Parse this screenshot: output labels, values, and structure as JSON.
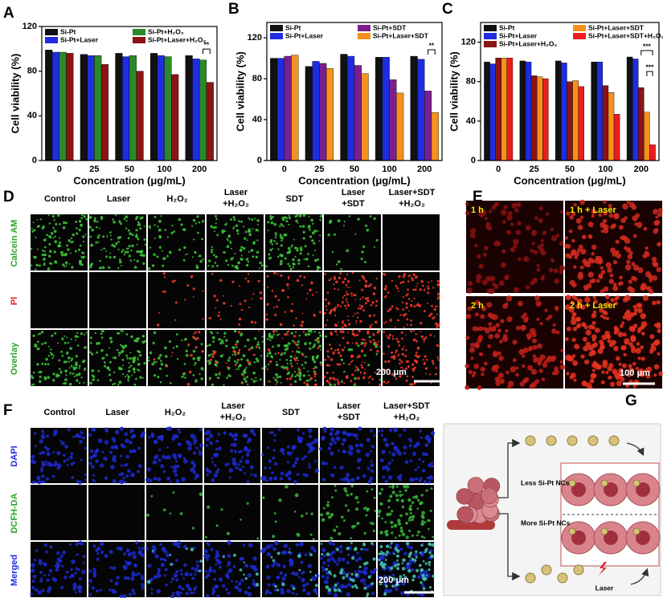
{
  "chart_data": [
    {
      "type": "bar",
      "panel": "A",
      "ylabel": "Cell viability (%)",
      "xlabel": "Concentration (μg/mL)",
      "categories": [
        "0",
        "25",
        "50",
        "100",
        "200"
      ],
      "series": [
        {
          "name": "Si-Pt",
          "color": "#111111",
          "values": [
            99,
            95,
            96,
            96,
            94
          ]
        },
        {
          "name": "Si-Pt+Laser",
          "color": "#1f2de0",
          "values": [
            97,
            94,
            93,
            94,
            91
          ]
        },
        {
          "name": "Si-Pt+H₂O₂",
          "color": "#2a8a2a",
          "values": [
            97,
            94,
            94,
            93,
            90
          ]
        },
        {
          "name": "Si-Pt+Laser+H₂O₂",
          "color": "#8b1414",
          "values": [
            96,
            86,
            80,
            77,
            70
          ]
        }
      ],
      "ylim": [
        0,
        120
      ],
      "yticks": [
        0,
        40,
        80,
        120
      ],
      "annotations": [
        "**"
      ]
    },
    {
      "type": "bar",
      "panel": "B",
      "ylabel": "Cell viability (%)",
      "xlabel": "Concentration (μg/mL)",
      "categories": [
        "0",
        "25",
        "50",
        "100",
        "200"
      ],
      "series": [
        {
          "name": "Si-Pt",
          "color": "#111111",
          "values": [
            100,
            92,
            104,
            101,
            102
          ]
        },
        {
          "name": "Si-Pt+Laser",
          "color": "#1f2de0",
          "values": [
            100,
            97,
            102,
            101,
            99
          ]
        },
        {
          "name": "Si-Pt+SDT",
          "color": "#7b1f8f",
          "values": [
            102,
            95,
            93,
            79,
            68
          ]
        },
        {
          "name": "Si-Pt+Laser+SDT",
          "color": "#f5921e",
          "values": [
            103,
            90,
            85,
            66,
            47
          ]
        }
      ],
      "ylim": [
        0,
        135
      ],
      "yticks": [
        0,
        40,
        80,
        120
      ],
      "annotations": [
        "**"
      ]
    },
    {
      "type": "bar",
      "panel": "C",
      "ylabel": "Cell viability (%)",
      "xlabel": "Concentration (μg/mL)",
      "categories": [
        "0",
        "25",
        "50",
        "100",
        "200"
      ],
      "series": [
        {
          "name": "Si-Pt",
          "color": "#111111",
          "values": [
            100,
            101,
            101,
            100,
            105
          ]
        },
        {
          "name": "Si-Pt+Laser",
          "color": "#1f2de0",
          "values": [
            98,
            100,
            99,
            100,
            103
          ]
        },
        {
          "name": "Si-Pt+Laser+H₂O₂",
          "color": "#8b1414",
          "values": [
            104,
            86,
            80,
            76,
            74
          ]
        },
        {
          "name": "Si-Pt+Laser+SDT",
          "color": "#f5921e",
          "values": [
            104,
            85,
            81,
            69,
            49
          ]
        },
        {
          "name": "Si-Pt+Laser+SDT+H₂O₂",
          "color": "#ee1c1c",
          "values": [
            104,
            83,
            75,
            47,
            16
          ]
        }
      ],
      "ylim": [
        0,
        140
      ],
      "yticks": [
        0,
        40,
        80,
        120
      ],
      "annotations": [
        "***",
        "***"
      ]
    }
  ],
  "panel_d": {
    "label": "D",
    "columns": [
      [
        "Control"
      ],
      [
        "Laser"
      ],
      [
        "H₂O₂"
      ],
      [
        "Laser",
        "+H₂O₂"
      ],
      [
        "SDT"
      ],
      [
        "Laser",
        "+SDT"
      ],
      [
        "Laser+SDT",
        "+H₂O₂"
      ]
    ],
    "rows": [
      "Calcein AM",
      "PI",
      "Overlay"
    ],
    "scale_bar": "200 μm"
  },
  "panel_e": {
    "label": "E",
    "images": [
      "1 h",
      "1 h + Laser",
      "2 h",
      "2 h + Laser"
    ],
    "scale_bar": "100 μm"
  },
  "panel_f": {
    "label": "F",
    "columns": [
      [
        "Control"
      ],
      [
        "Laser"
      ],
      [
        "H₂O₂"
      ],
      [
        "Laser",
        "+H₂O₂"
      ],
      [
        "SDT"
      ],
      [
        "Laser",
        "+SDT"
      ],
      [
        "Laser+SDT",
        "+H₂O₂"
      ]
    ],
    "rows": [
      "DAPI",
      "DCFH-DA",
      "Merged"
    ],
    "scale_bar": "200 μm"
  },
  "panel_g": {
    "label": "G",
    "less": "Less Si-Pt NCs",
    "more": "More Si-Pt NCs",
    "laser": "Laser"
  }
}
